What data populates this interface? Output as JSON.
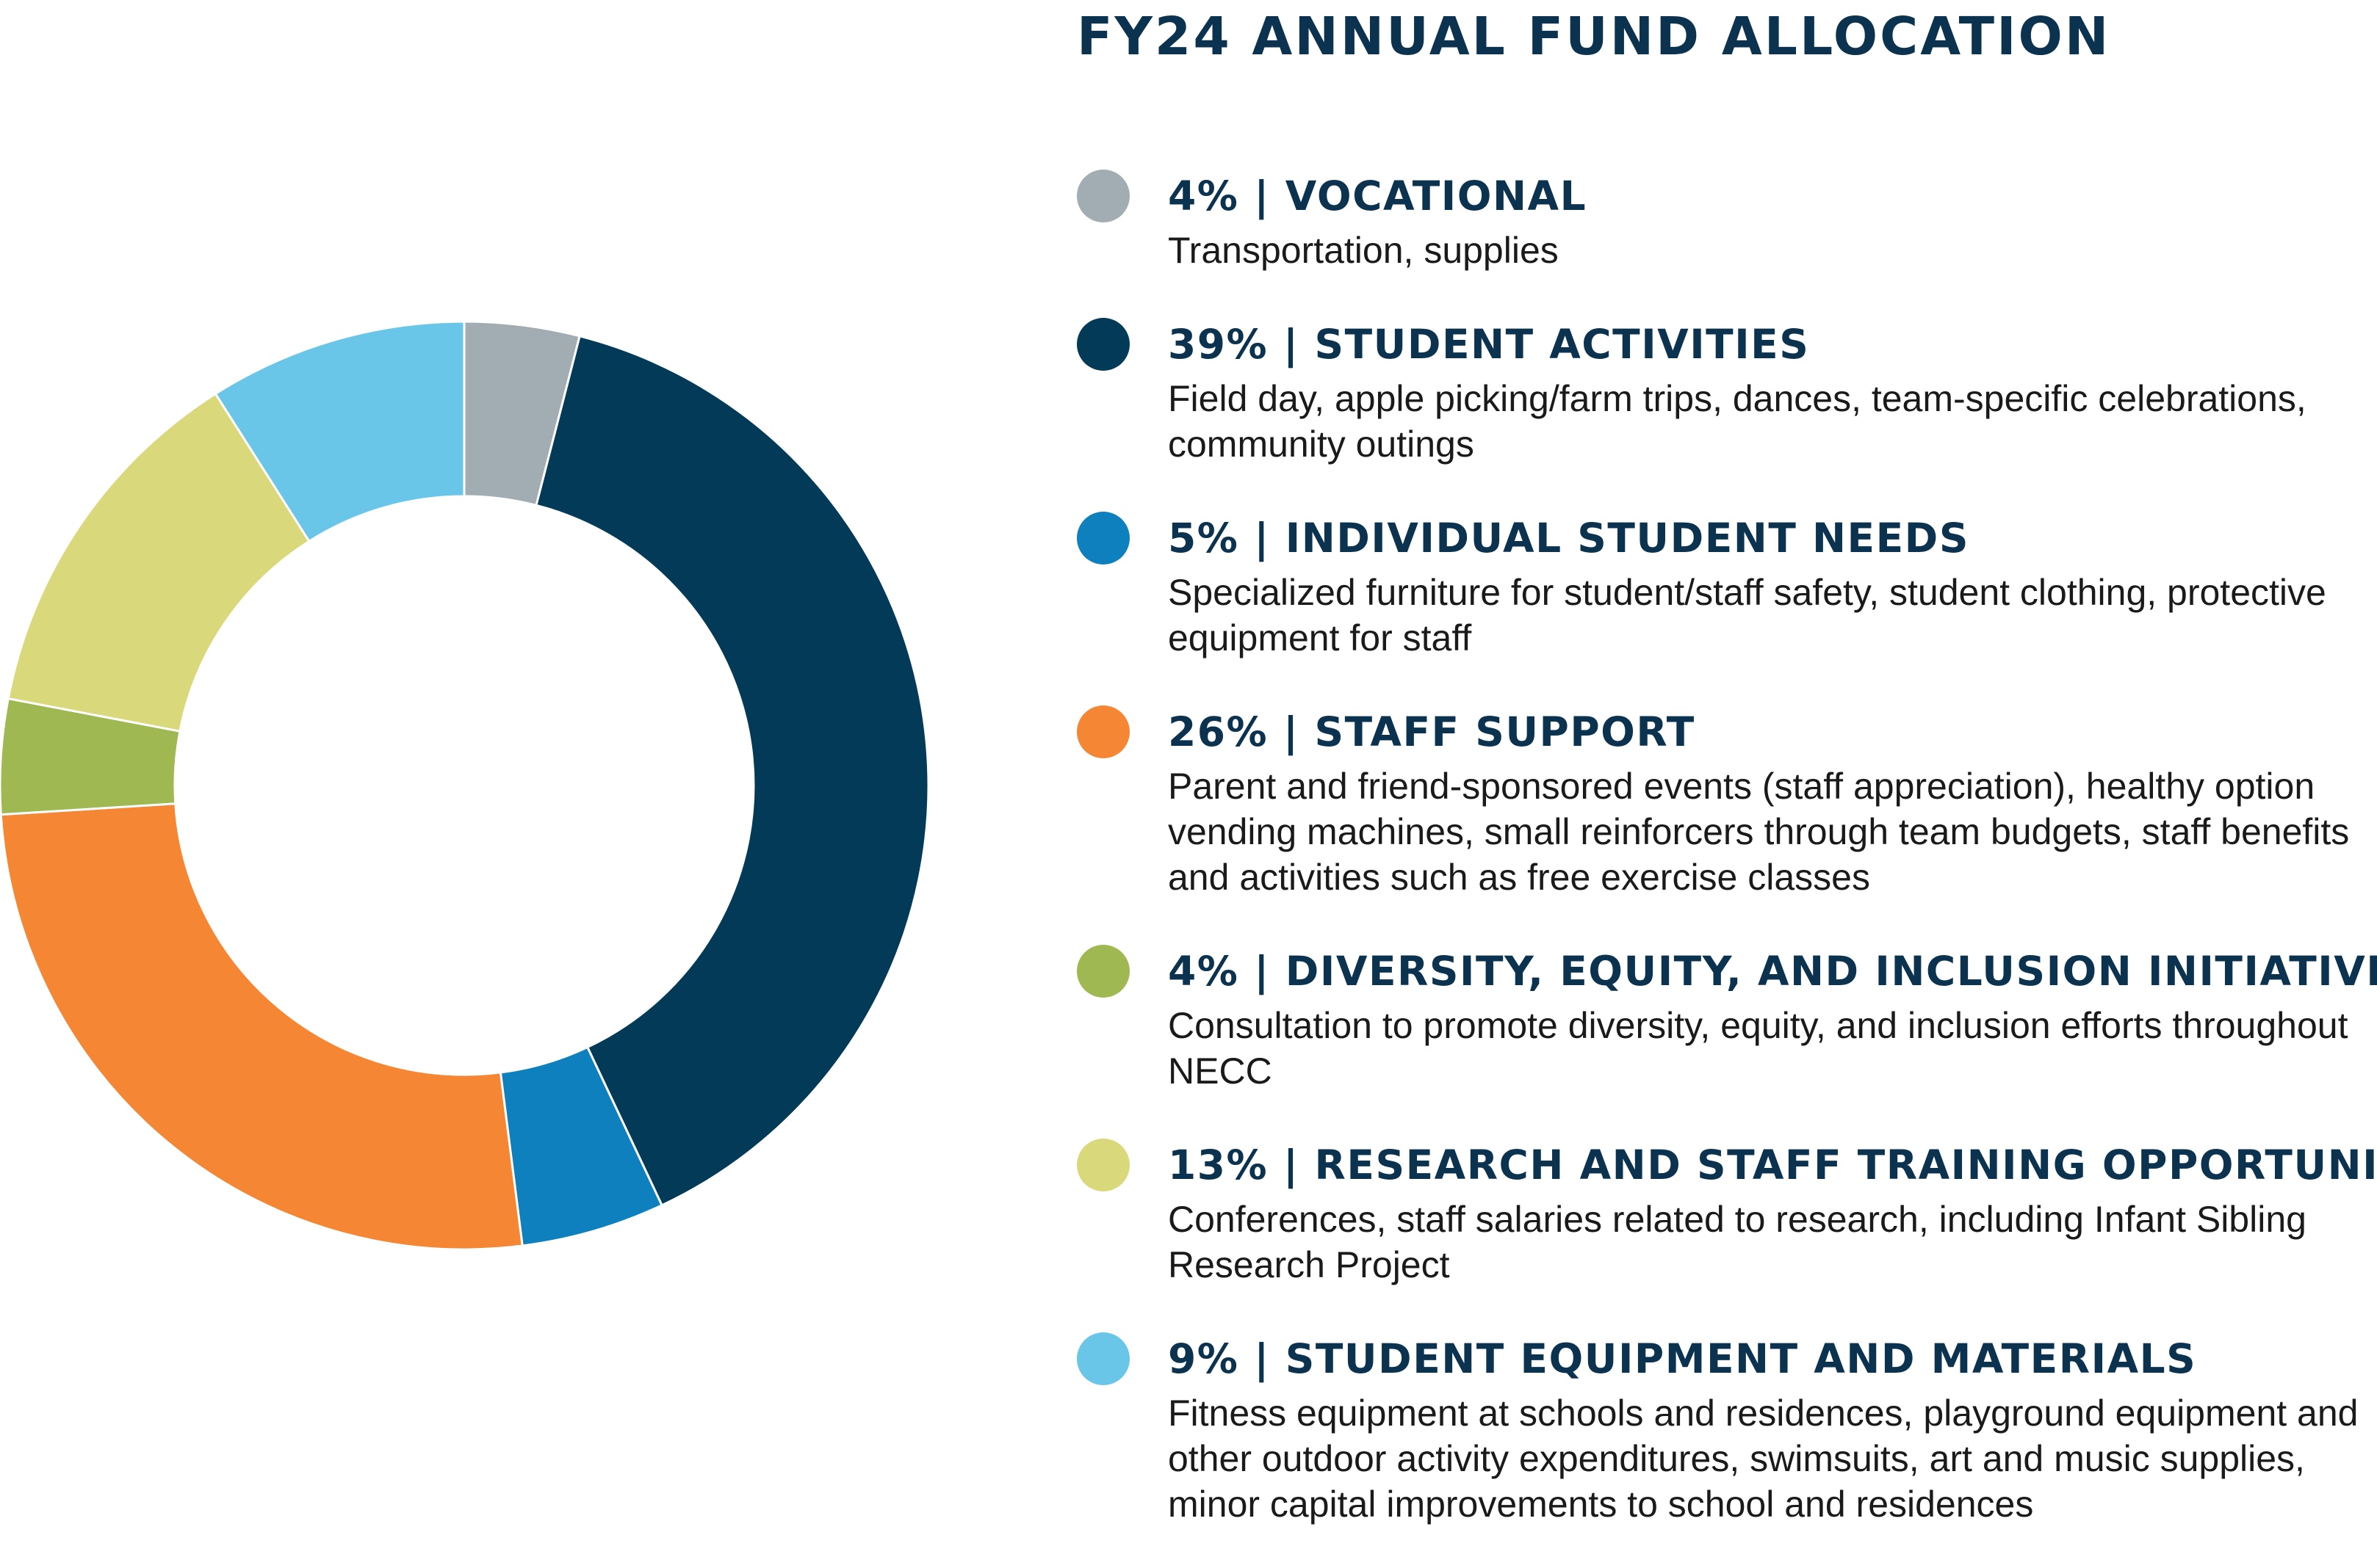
{
  "chart_data": {
    "type": "pie",
    "title": "FY24 ANNUAL FUND ALLOCATION",
    "sweep_order": [
      "VOCATIONAL",
      "STUDENT ACTIVITIES",
      "INDIVIDUAL STUDENT NEEDS",
      "STAFF SUPPORT",
      "DIVERSITY, EQUITY, AND INCLUSION INITIATIVES",
      "RESEARCH AND STAFF TRAINING OPPORTUNITIES",
      "STUDENT EQUIPMENT AND MATERIALS"
    ],
    "legend_position": "right",
    "slices": [
      {
        "label": "VOCATIONAL",
        "value": 4,
        "value_label": "4%",
        "color": "#a2adb3",
        "description": "Transportation, supplies"
      },
      {
        "label": "STUDENT ACTIVITIES",
        "value": 39,
        "value_label": "39%",
        "color": "#023a57",
        "description": "Field day, apple picking/farm trips, dances, team-specific celebrations, community outings"
      },
      {
        "label": "INDIVIDUAL STUDENT NEEDS",
        "value": 5,
        "value_label": "5%",
        "color": "#0e80bd",
        "description": "Specialized furniture for student/staff safety, student clothing, protective equipment for staff"
      },
      {
        "label": "STAFF SUPPORT",
        "value": 26,
        "value_label": "26%",
        "color": "#f48634",
        "description": "Parent and friend-sponsored events (staff appreciation), healthy option vending machines, small reinforcers through team budgets, staff benefits and activities such as free exercise classes"
      },
      {
        "label": "DIVERSITY, EQUITY, AND INCLUSION INITIATIVES",
        "value": 4,
        "value_label": "4%",
        "color": "#a0b851",
        "description": "Consultation to promote diversity, equity, and inclusion efforts throughout NECC"
      },
      {
        "label": "RESEARCH AND STAFF TRAINING OPPORTUNITIES",
        "value": 13,
        "value_label": "13%",
        "color": "#d9d97b",
        "description": "Conferences, staff salaries related to research, including Infant Sibling Research Project"
      },
      {
        "label": "STUDENT EQUIPMENT AND MATERIALS",
        "value": 9,
        "value_label": "9%",
        "color": "#6ac6e8",
        "description": "Fitness equipment at schools and residences, playground equipment and other outdoor activity expenditures, swimsuits, art and music supplies, minor capital  improvements to school and residences"
      }
    ]
  }
}
